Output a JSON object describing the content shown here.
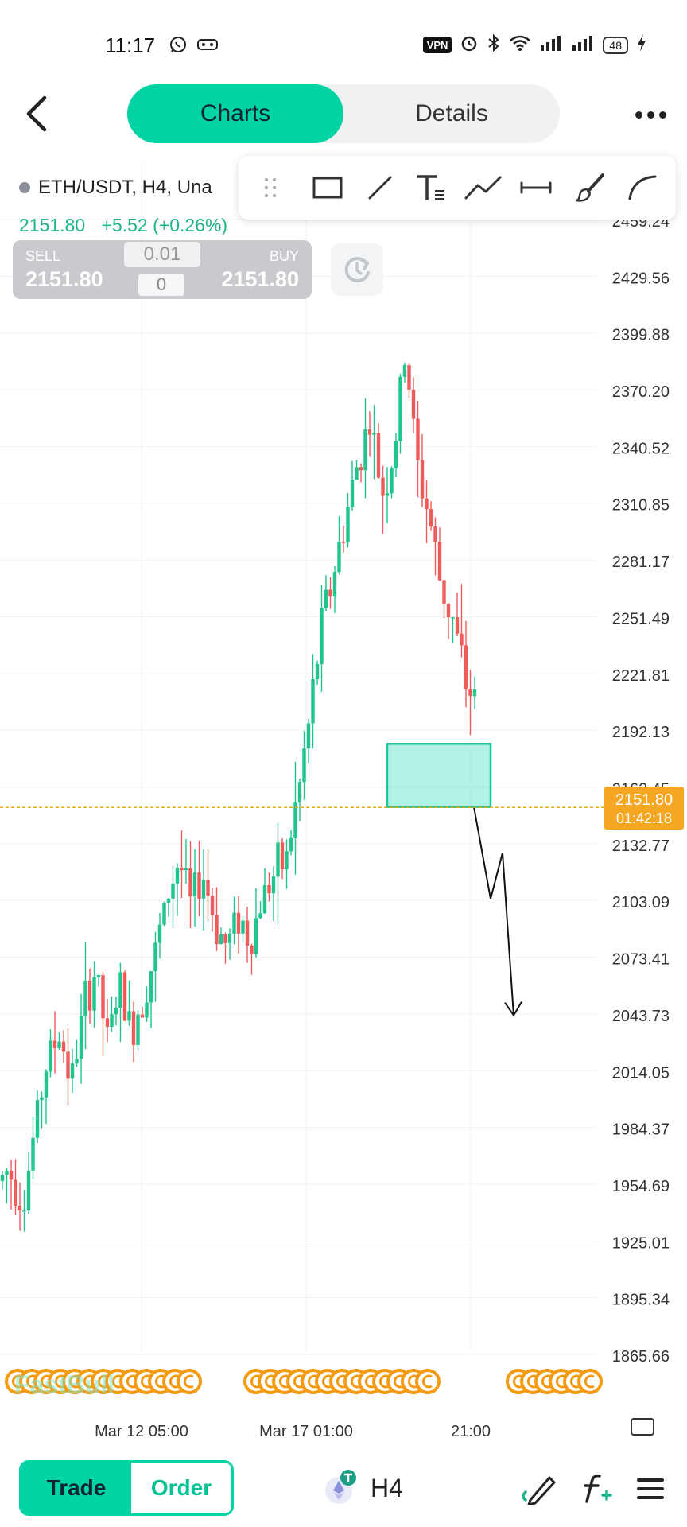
{
  "status_bar": {
    "time": "11:17",
    "vpn": "VPN",
    "battery": "48",
    "icons": [
      "whatsapp-icon",
      "vr-glasses-icon",
      "alarm-icon",
      "bluetooth-icon",
      "wifi-icon",
      "signal-icon",
      "charging-icon"
    ]
  },
  "header": {
    "tabs": [
      {
        "label": "Charts",
        "active": true
      },
      {
        "label": "Details",
        "active": false
      }
    ]
  },
  "symbol": {
    "label": "ETH/USDT, H4, Una",
    "price": "2151.80",
    "change": "+5.52 (+0.26%)"
  },
  "trade_widget": {
    "sell_label": "SELL",
    "sell_price": "2151.80",
    "buy_label": "BUY",
    "buy_price": "2151.80",
    "quantity": "0.01",
    "spread": "0"
  },
  "drawing_toolbar": {
    "tools": [
      "drag-handle-icon",
      "rectangle-icon",
      "trendline-icon",
      "text-icon",
      "polyline-icon",
      "horizontal-line-icon",
      "brush-icon",
      "arc-icon"
    ]
  },
  "chart_data": {
    "type": "candlestick",
    "y_axis_ticks": [
      "2459.24",
      "2429.56",
      "2399.88",
      "2370.20",
      "2340.52",
      "2310.85",
      "2281.17",
      "2251.49",
      "2221.81",
      "2192.13",
      "2162.45",
      "2132.77",
      "2103.09",
      "2073.41",
      "2043.73",
      "2014.05",
      "1984.37",
      "1954.69",
      "1925.01",
      "1895.34",
      "1865.66"
    ],
    "x_axis_ticks": [
      "Mar 12 05:00",
      "Mar 17 01:00",
      "21:00"
    ],
    "current_price": "2151.80",
    "countdown": "01:42:18",
    "up_color": "#1fc48f",
    "down_color": "#ef5b5b",
    "watermark": "FastBull",
    "annotations": {
      "zone": {
        "price_top": 2185,
        "price_bottom": 2152
      },
      "projection_path": [
        2152,
        2104,
        2128,
        2043
      ]
    }
  },
  "bottom_bar": {
    "trade_label": "Trade",
    "order_label": "Order",
    "timeframe": "H4",
    "icons": [
      "ethereum-icon",
      "draw-pen-icon",
      "function-add-icon",
      "menu-icon"
    ]
  }
}
